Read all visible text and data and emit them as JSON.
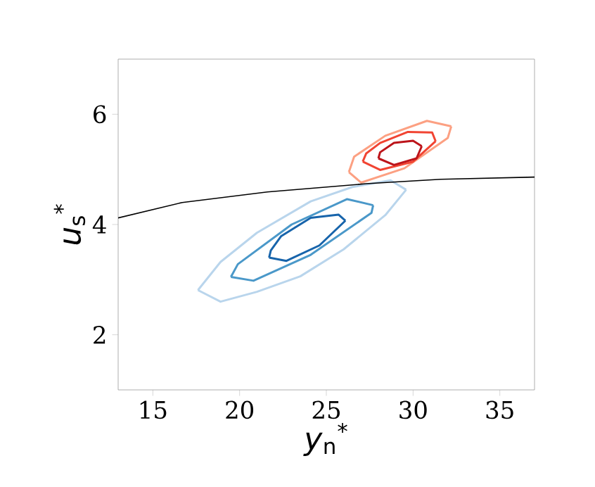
{
  "chart_data": {
    "type": "line",
    "xlabel": "*y*$_{n}$$^{*}$",
    "ylabel": "*u*$_{s}$$^{*}$",
    "xlim": [
      13,
      37
    ],
    "ylim": [
      1,
      7
    ],
    "xticks": [
      15,
      20,
      25,
      30,
      35
    ],
    "yticks": [
      2,
      4,
      6
    ],
    "grid": false,
    "marker": "none",
    "line_style": "solid",
    "series": [
      {
        "color": "#b9d5ec",
        "x": [
          17.6,
          18.9,
          21.0,
          23.5,
          26.0,
          28.4,
          29.6
        ],
        "values": [
          2.81,
          2.6,
          2.78,
          3.06,
          3.55,
          4.17,
          4.63
        ]
      },
      {
        "color": "#b9d5ec",
        "x": [
          17.6,
          18.9,
          21.0,
          24.1,
          26.5,
          28.7,
          29.6
        ],
        "values": [
          2.81,
          3.32,
          3.85,
          4.42,
          4.68,
          4.8,
          4.63
        ]
      },
      {
        "color": "#4a98c9",
        "x": [
          19.5,
          20.8,
          24.1,
          27.6,
          27.7
        ],
        "values": [
          3.05,
          2.98,
          3.45,
          4.21,
          4.35
        ]
      },
      {
        "color": "#4a98c9",
        "x": [
          19.5,
          19.9,
          23.0,
          26.2,
          27.7
        ],
        "values": [
          3.05,
          3.28,
          4.0,
          4.46,
          4.35
        ]
      },
      {
        "color": "#1764ab",
        "x": [
          21.7,
          22.7,
          24.6,
          26.1
        ],
        "values": [
          3.4,
          3.34,
          3.62,
          4.07
        ]
      },
      {
        "color": "#1764ab",
        "x": [
          21.7,
          21.8,
          22.4,
          24.1,
          25.7,
          26.1
        ],
        "values": [
          3.4,
          3.53,
          3.79,
          4.12,
          4.18,
          4.07
        ]
      },
      {
        "color": "#fca082",
        "x": [
          26.3,
          27.0,
          29.5,
          32.0,
          32.2
        ],
        "values": [
          4.95,
          4.76,
          5.02,
          5.57,
          5.78
        ]
      },
      {
        "color": "#fca082",
        "x": [
          26.3,
          26.6,
          28.4,
          30.8,
          32.2
        ],
        "values": [
          4.95,
          5.23,
          5.61,
          5.88,
          5.78
        ]
      },
      {
        "color": "#f14432",
        "x": [
          27.1,
          28.1,
          30.0,
          31.3
        ],
        "values": [
          5.14,
          4.99,
          5.14,
          5.51
        ]
      },
      {
        "color": "#f14432",
        "x": [
          27.1,
          27.3,
          28.1,
          29.7,
          31.1,
          31.3
        ],
        "values": [
          5.14,
          5.29,
          5.48,
          5.68,
          5.67,
          5.51
        ]
      },
      {
        "color": "#bc141a",
        "x": [
          28.0,
          28.9,
          30.2,
          30.5
        ],
        "values": [
          5.2,
          5.08,
          5.2,
          5.42
        ]
      },
      {
        "color": "#bc141a",
        "x": [
          28.0,
          28.1,
          28.9,
          30.0,
          30.5
        ],
        "values": [
          5.2,
          5.31,
          5.48,
          5.52,
          5.42
        ]
      },
      {
        "color": "#000000",
        "x": [
          13,
          16.7,
          21.6,
          27.3,
          31.6,
          37
        ],
        "values": [
          4.12,
          4.4,
          4.59,
          4.74,
          4.82,
          4.86
        ]
      }
    ]
  }
}
